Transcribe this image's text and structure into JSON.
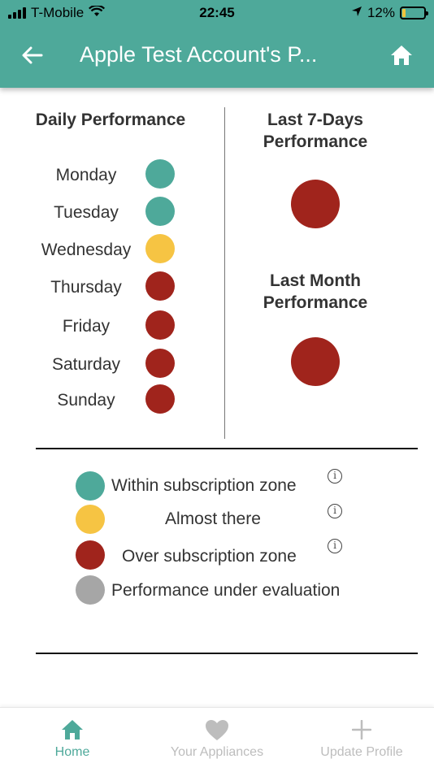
{
  "status_bar": {
    "carrier": "T-Mobile",
    "time": "22:45",
    "battery": "12%"
  },
  "header": {
    "title": "Apple Test Account's P...",
    "back_icon": "arrow-left-icon",
    "home_icon": "home-icon"
  },
  "daily": {
    "title": "Daily Performance",
    "days": [
      {
        "label": "Monday",
        "status": "within"
      },
      {
        "label": "Tuesday",
        "status": "within"
      },
      {
        "label": "Wednesday",
        "status": "almost"
      },
      {
        "label": "Thursday",
        "status": "over"
      },
      {
        "label": "Friday",
        "status": "over"
      },
      {
        "label": "Saturday",
        "status": "over"
      },
      {
        "label": "Sunday",
        "status": "over"
      }
    ]
  },
  "last7": {
    "title_line1": "Last 7-Days",
    "title_line2": "Performance",
    "status": "over"
  },
  "lastMonth": {
    "title_line1": "Last Month",
    "title_line2": "Performance",
    "status": "over"
  },
  "legend": [
    {
      "label": "Within subscription zone",
      "status": "within",
      "info": true
    },
    {
      "label": "Almost there",
      "status": "almost",
      "info": true
    },
    {
      "label": "Over subscription zone",
      "status": "over",
      "info": true
    },
    {
      "label": "Performance under evaluation",
      "status": "evaluation",
      "info": false
    }
  ],
  "colors": {
    "within": "#4ea99a",
    "almost": "#f6c443",
    "over": "#a0241c",
    "evaluation": "#a6a6a6",
    "accent": "#4ea99a"
  },
  "nav": [
    {
      "label": "Home",
      "icon": "home-icon",
      "active": true
    },
    {
      "label": "Your Appliances",
      "icon": "heart-icon",
      "active": false
    },
    {
      "label": "Update Profile",
      "icon": "plus-icon",
      "active": false
    }
  ]
}
